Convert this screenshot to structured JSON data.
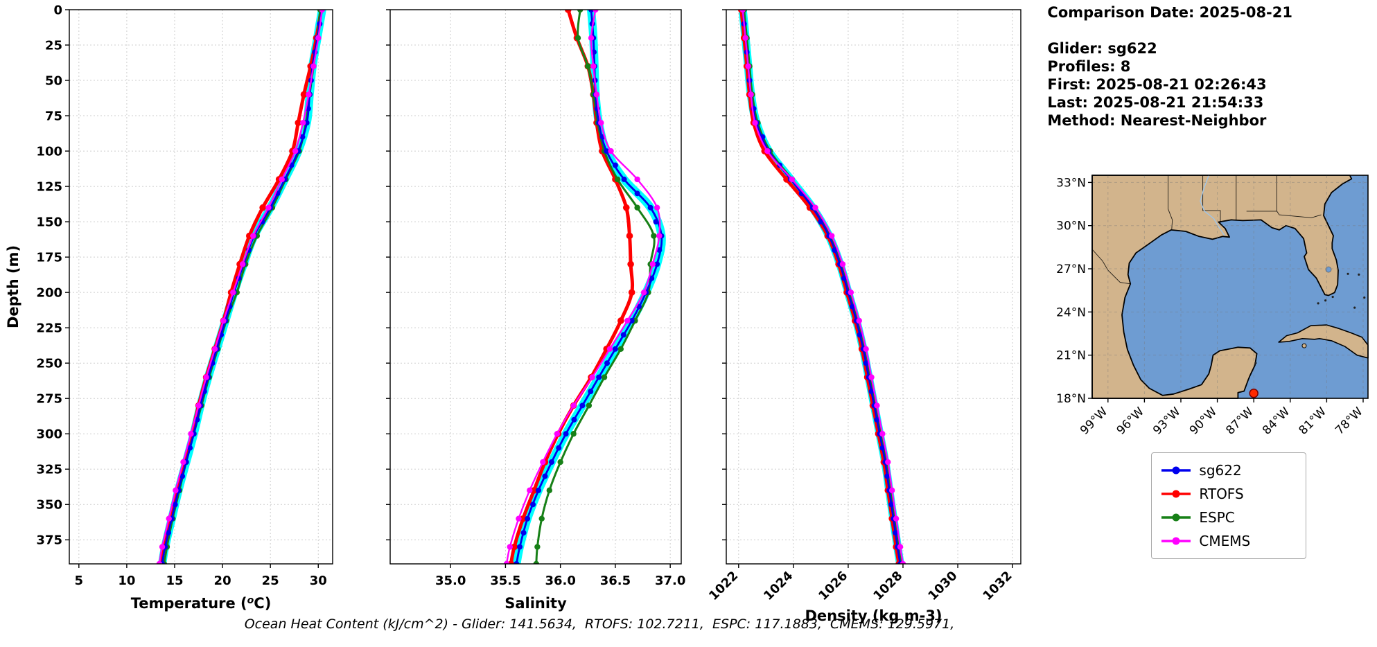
{
  "info": {
    "date": "Comparison Date: 2025-08-21",
    "lines": [
      "Glider: sg622",
      "Profiles: 8",
      "First: 2025-08-21 02:26:43",
      "Last: 2025-08-21 21:54:33",
      "Method: Nearest-Neighbor"
    ]
  },
  "legend": {
    "entries": [
      {
        "label": "sg622",
        "color": "#0000EE"
      },
      {
        "label": "RTOFS",
        "color": "#FF0000"
      },
      {
        "label": "ESPC",
        "color": "#178017"
      },
      {
        "label": "CMEMS",
        "color": "#FF00FF"
      }
    ]
  },
  "caption": "Ocean Heat Content (kJ/cm^2) - Glider: 141.5634,  RTOFS: 102.7211,  ESPC: 117.1883,  CMEMS: 129.5971,",
  "map": {
    "land_color": "#D2B48C",
    "water_color": "#6E9CD2",
    "marker": {
      "lon": -87.0,
      "lat": 18.35,
      "color": "#FF2A00"
    },
    "lat_ticks": [
      {
        "value": 33,
        "label": "33°N"
      },
      {
        "value": 30,
        "label": "30°N"
      },
      {
        "value": 27,
        "label": "27°N"
      },
      {
        "value": 24,
        "label": "24°N"
      },
      {
        "value": 21,
        "label": "21°N"
      },
      {
        "value": 18,
        "label": "18°N"
      }
    ],
    "lon_ticks": [
      {
        "value": -99,
        "label": "99°W"
      },
      {
        "value": -96,
        "label": "96°W"
      },
      {
        "value": -93,
        "label": "93°W"
      },
      {
        "value": -90,
        "label": "90°W"
      },
      {
        "value": -87,
        "label": "87°W"
      },
      {
        "value": -84,
        "label": "84°W"
      },
      {
        "value": -81,
        "label": "81°W"
      },
      {
        "value": -78,
        "label": "78°W"
      }
    ]
  },
  "chart_data": [
    {
      "type": "line",
      "title": "",
      "xlabel": "Temperature (°C)",
      "ylabel": "Depth (m)",
      "xlim": [
        4,
        31.5
      ],
      "ylim": [
        0,
        392
      ],
      "grid": true,
      "xticks": [
        5,
        10,
        15,
        20,
        25,
        30
      ],
      "xtick_labels": [
        "5",
        "10",
        "15",
        "20",
        "25",
        "30"
      ],
      "yticks": [
        0,
        25,
        50,
        75,
        100,
        125,
        150,
        175,
        200,
        225,
        250,
        275,
        300,
        325,
        350,
        375
      ],
      "depths": [
        0,
        20,
        40,
        60,
        80,
        100,
        120,
        140,
        160,
        180,
        200,
        220,
        240,
        260,
        280,
        300,
        320,
        340,
        360,
        380,
        392
      ],
      "series": [
        {
          "name": "sg622",
          "color": "#0000EE",
          "halo": "#00FFFF",
          "values": [
            30.4,
            29.9,
            29.4,
            29.1,
            28.8,
            27.9,
            26.5,
            25.0,
            23.3,
            22.2,
            21.2,
            20.3,
            19.4,
            18.5,
            17.7,
            17.0,
            16.2,
            15.4,
            14.7,
            14.0,
            13.7
          ]
        },
        {
          "name": "RTOFS",
          "color": "#FF0000",
          "values": [
            30.3,
            29.8,
            29.2,
            28.5,
            27.9,
            27.3,
            25.9,
            24.2,
            22.8,
            21.8,
            20.9,
            20.1,
            19.2,
            18.3,
            17.5,
            16.8,
            16.0,
            15.2,
            14.5,
            13.8,
            13.5
          ]
        },
        {
          "name": "ESPC",
          "color": "#178017",
          "values": [
            30.2,
            29.9,
            29.5,
            29.1,
            28.7,
            28.0,
            26.6,
            25.2,
            23.6,
            22.4,
            21.5,
            20.4,
            19.5,
            18.6,
            17.8,
            17.0,
            16.2,
            15.5,
            14.8,
            14.2,
            13.9
          ]
        },
        {
          "name": "CMEMS",
          "color": "#FF00FF",
          "values": [
            30.4,
            30.0,
            29.5,
            29.0,
            28.4,
            27.6,
            26.2,
            24.8,
            23.2,
            22.1,
            21.1,
            20.1,
            19.2,
            18.3,
            17.5,
            16.7,
            15.9,
            15.1,
            14.4,
            13.7,
            13.4
          ]
        }
      ]
    },
    {
      "type": "line",
      "title": "",
      "xlabel": "Salinity",
      "ylabel": "Depth (m)",
      "xlim": [
        34.45,
        37.1
      ],
      "ylim": [
        0,
        392
      ],
      "grid": true,
      "xticks": [
        35.0,
        35.5,
        36.0,
        36.5,
        37.0
      ],
      "xtick_labels": [
        "35.0",
        "35.5",
        "36.0",
        "36.5",
        "37.0"
      ],
      "yticks": [
        0,
        25,
        50,
        75,
        100,
        125,
        150,
        175,
        200,
        225,
        250,
        275,
        300,
        325,
        350,
        375
      ],
      "depths": [
        0,
        20,
        40,
        60,
        80,
        100,
        120,
        140,
        160,
        180,
        200,
        220,
        240,
        260,
        280,
        300,
        320,
        340,
        360,
        380,
        392
      ],
      "series": [
        {
          "name": "sg622",
          "color": "#0000EE",
          "halo": "#00FFFF",
          "values": [
            36.28,
            36.3,
            36.31,
            36.32,
            36.35,
            36.42,
            36.58,
            36.82,
            36.92,
            36.88,
            36.78,
            36.65,
            36.5,
            36.35,
            36.2,
            36.05,
            35.92,
            35.8,
            35.7,
            35.63,
            35.6
          ]
        },
        {
          "name": "RTOFS",
          "color": "#FF0000",
          "values": [
            36.07,
            36.15,
            36.25,
            36.3,
            36.33,
            36.38,
            36.5,
            36.6,
            36.63,
            36.64,
            36.65,
            36.55,
            36.42,
            36.28,
            36.12,
            35.98,
            35.86,
            35.76,
            35.66,
            35.58,
            35.55
          ]
        },
        {
          "name": "ESPC",
          "color": "#178017",
          "values": [
            36.18,
            36.16,
            36.25,
            36.3,
            36.34,
            36.4,
            36.52,
            36.7,
            36.85,
            36.82,
            36.8,
            36.68,
            36.55,
            36.4,
            36.26,
            36.12,
            36.0,
            35.9,
            35.83,
            35.79,
            35.78
          ]
        },
        {
          "name": "CMEMS",
          "color": "#FF00FF",
          "values": [
            36.32,
            36.28,
            36.3,
            36.33,
            36.37,
            36.46,
            36.7,
            36.88,
            36.9,
            36.84,
            36.76,
            36.61,
            36.45,
            36.29,
            36.12,
            35.97,
            35.84,
            35.72,
            35.62,
            35.54,
            35.51
          ]
        }
      ]
    },
    {
      "type": "line",
      "title": "",
      "xlabel": "Density (kg m-3)",
      "ylabel": "Depth (m)",
      "xlim": [
        1021.55,
        1032.3
      ],
      "ylim": [
        0,
        392
      ],
      "grid": true,
      "rotate_xticks": true,
      "xticks": [
        1022,
        1024,
        1026,
        1028,
        1030,
        1032
      ],
      "xtick_labels": [
        "1022",
        "1024",
        "1026",
        "1028",
        "1030",
        "1032"
      ],
      "yticks": [
        0,
        25,
        50,
        75,
        100,
        125,
        150,
        175,
        200,
        225,
        250,
        275,
        300,
        325,
        350,
        375
      ],
      "depths": [
        0,
        20,
        40,
        60,
        80,
        100,
        120,
        140,
        160,
        180,
        200,
        220,
        240,
        260,
        280,
        300,
        320,
        340,
        360,
        380,
        392
      ],
      "series": [
        {
          "name": "sg622",
          "color": "#0000EE",
          "halo": "#00FFFF",
          "values": [
            1022.15,
            1022.25,
            1022.35,
            1022.45,
            1022.65,
            1023.1,
            1023.9,
            1024.7,
            1025.3,
            1025.7,
            1026.0,
            1026.3,
            1026.55,
            1026.75,
            1026.95,
            1027.15,
            1027.35,
            1027.5,
            1027.65,
            1027.8,
            1027.9
          ]
        },
        {
          "name": "RTOFS",
          "color": "#FF0000",
          "values": [
            1022.1,
            1022.2,
            1022.3,
            1022.4,
            1022.55,
            1022.95,
            1023.75,
            1024.6,
            1025.25,
            1025.65,
            1025.95,
            1026.25,
            1026.5,
            1026.7,
            1026.9,
            1027.1,
            1027.3,
            1027.45,
            1027.6,
            1027.75,
            1027.85
          ]
        },
        {
          "name": "ESPC",
          "color": "#178017",
          "values": [
            1022.2,
            1022.3,
            1022.4,
            1022.5,
            1022.7,
            1023.15,
            1023.95,
            1024.75,
            1025.35,
            1025.75,
            1026.05,
            1026.35,
            1026.6,
            1026.8,
            1027.0,
            1027.2,
            1027.4,
            1027.55,
            1027.7,
            1027.85,
            1027.95
          ]
        },
        {
          "name": "CMEMS",
          "color": "#FF00FF",
          "values": [
            1022.15,
            1022.25,
            1022.35,
            1022.45,
            1022.6,
            1023.05,
            1023.95,
            1024.8,
            1025.4,
            1025.8,
            1026.1,
            1026.4,
            1026.65,
            1026.85,
            1027.05,
            1027.25,
            1027.45,
            1027.6,
            1027.75,
            1027.9,
            1028.0
          ]
        }
      ]
    }
  ]
}
